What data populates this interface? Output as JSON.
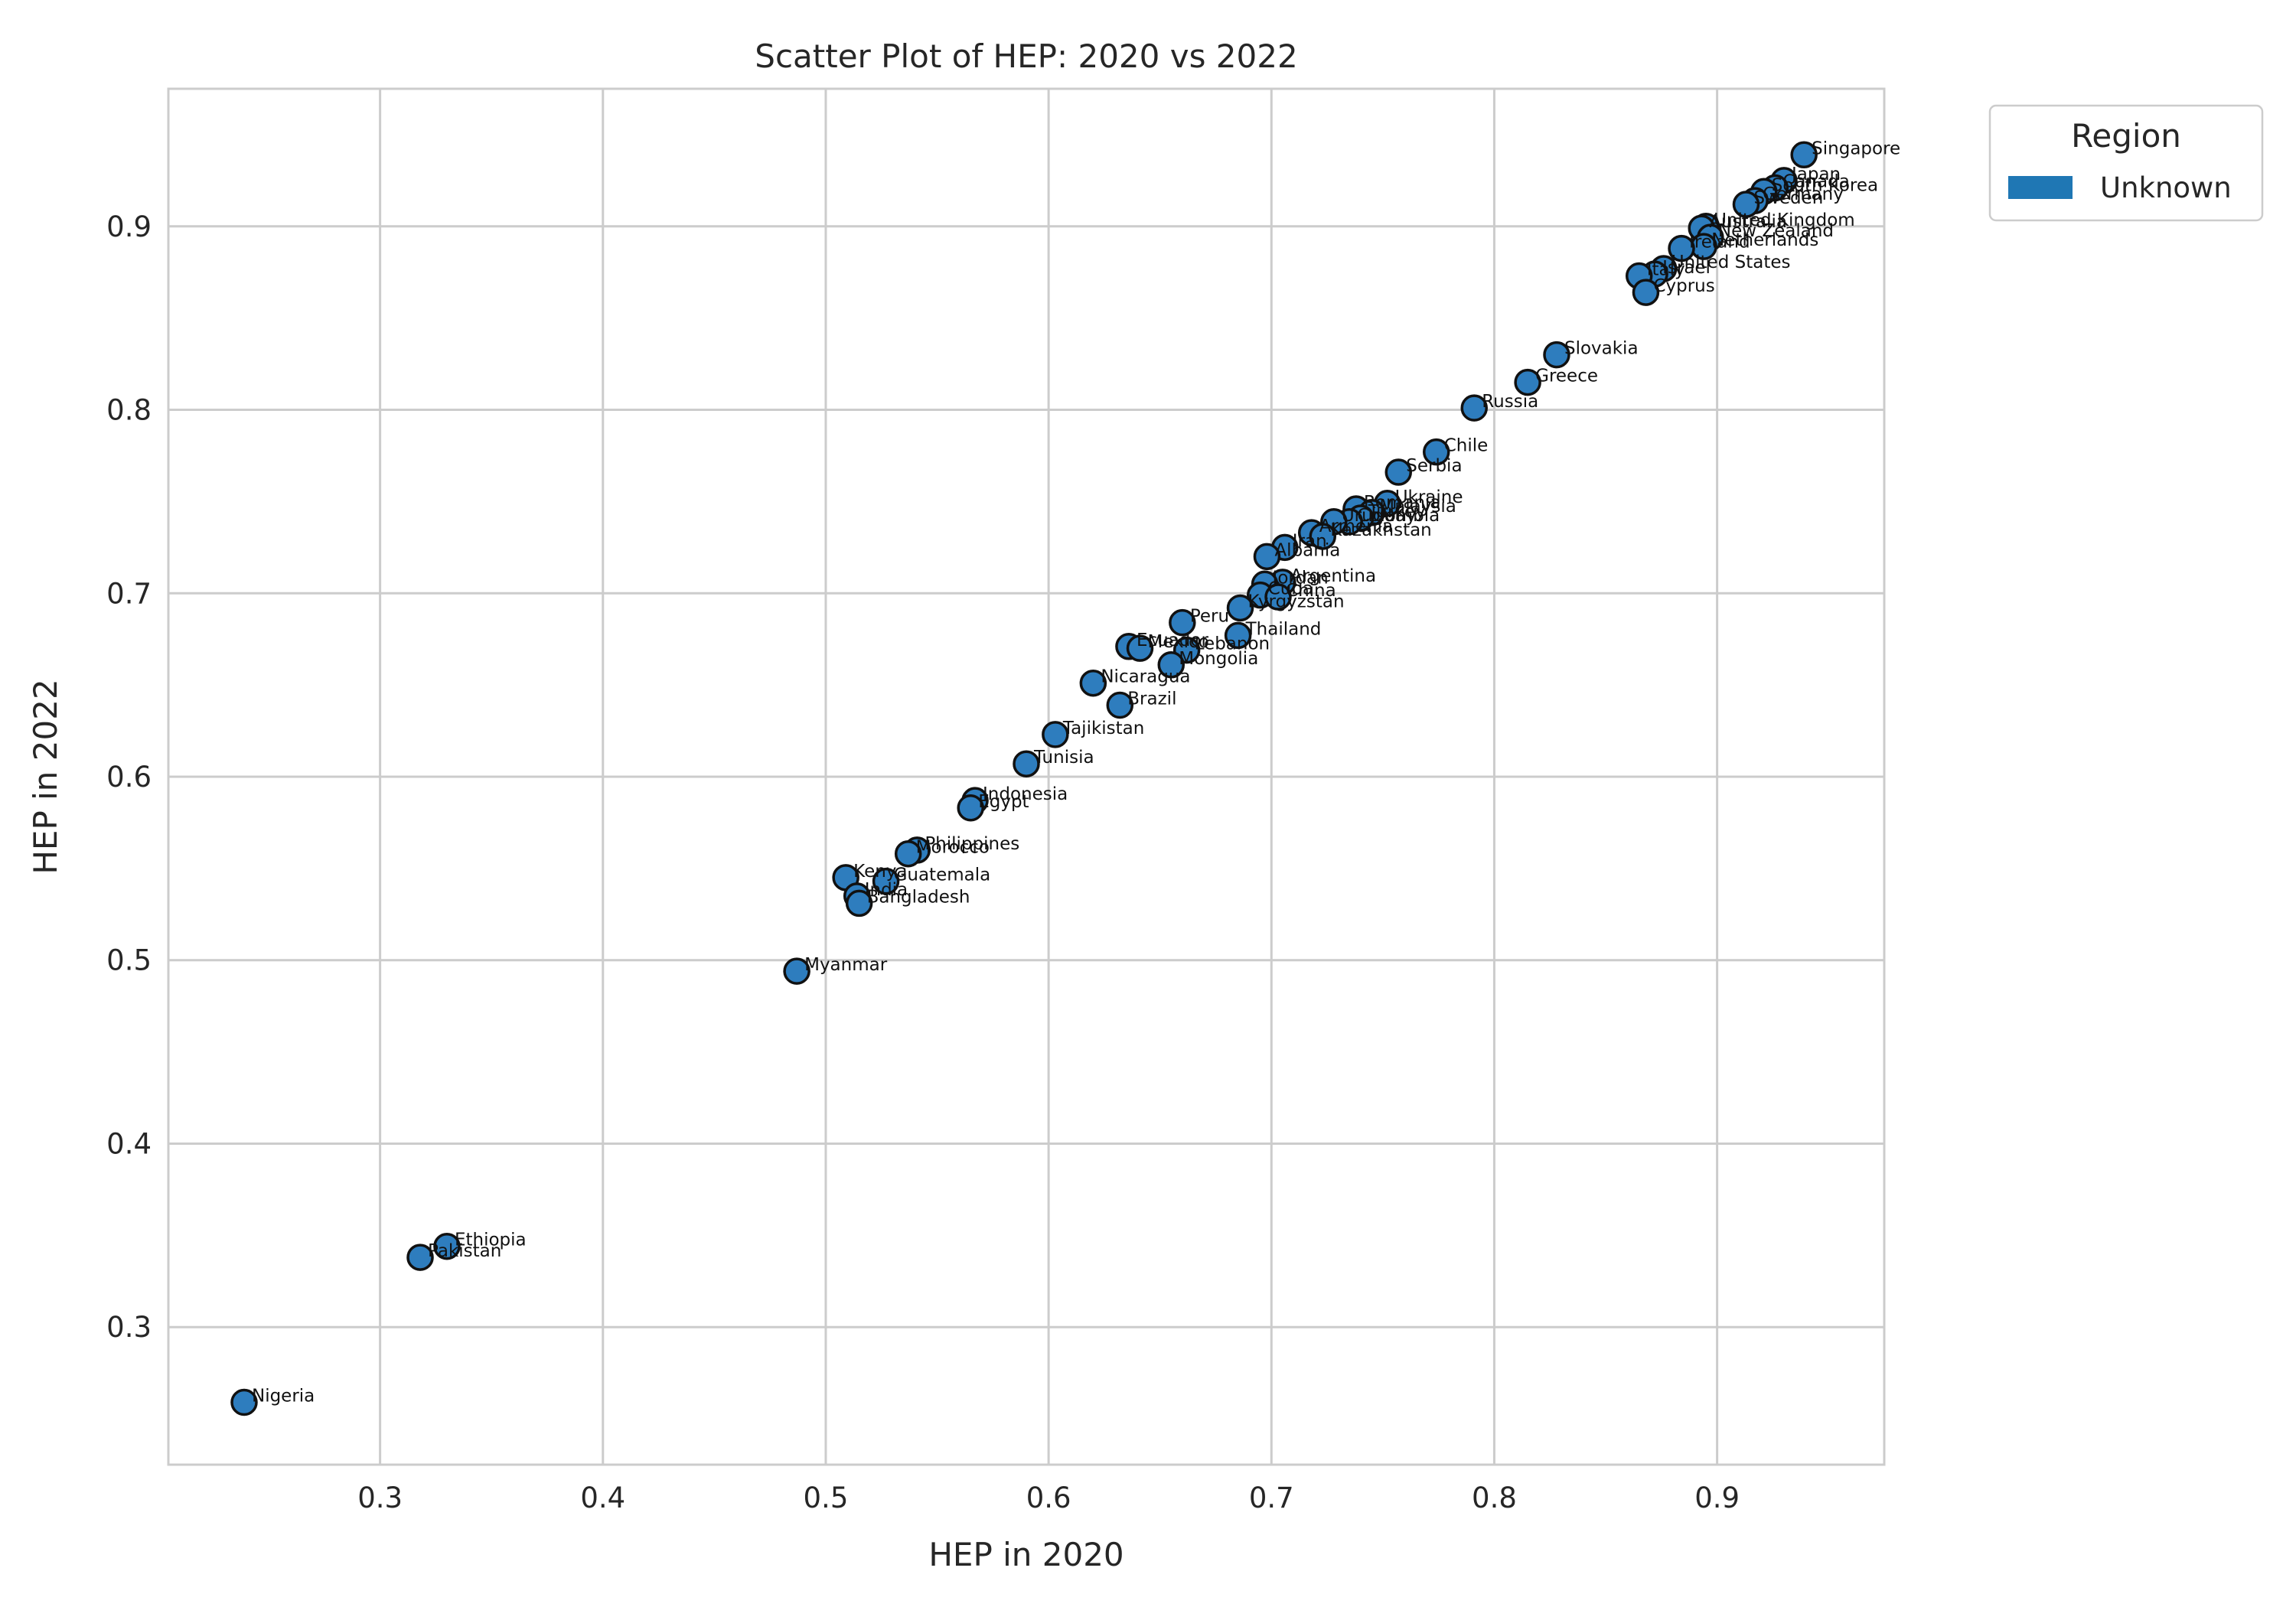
{
  "colors": {
    "point_fill": "#2e7dbe",
    "point_stroke": "#111111",
    "grid": "#cccccc",
    "frame": "#cccccc",
    "legend_patch": "#1f77b4"
  },
  "chart_data": {
    "type": "scatter",
    "title": "Scatter Plot of HEP: 2020 vs 2022",
    "xlabel": "HEP in 2020",
    "ylabel": "HEP in 2022",
    "xlim": [
      0.205,
      0.975
    ],
    "ylim": [
      0.225,
      0.975
    ],
    "xticks": [
      0.3,
      0.4,
      0.5,
      0.6,
      0.7,
      0.8,
      0.9
    ],
    "yticks": [
      0.3,
      0.4,
      0.5,
      0.6,
      0.7,
      0.8,
      0.9
    ],
    "xtick_labels": [
      "0.3",
      "0.4",
      "0.5",
      "0.6",
      "0.7",
      "0.8",
      "0.9"
    ],
    "ytick_labels": [
      "0.3",
      "0.4",
      "0.5",
      "0.6",
      "0.7",
      "0.8",
      "0.9"
    ],
    "grid": true,
    "legend": {
      "title": "Region",
      "entries": [
        "Unknown"
      ],
      "placement": "outside-top-right"
    },
    "points": [
      {
        "label": "Singapore",
        "x": 0.939,
        "y": 0.939
      },
      {
        "label": "Japan",
        "x": 0.93,
        "y": 0.925
      },
      {
        "label": "Canada",
        "x": 0.926,
        "y": 0.921
      },
      {
        "label": "South Korea",
        "x": 0.921,
        "y": 0.919
      },
      {
        "label": "Germany",
        "x": 0.917,
        "y": 0.914
      },
      {
        "label": "Sweden",
        "x": 0.913,
        "y": 0.912
      },
      {
        "label": "United Kingdom",
        "x": 0.895,
        "y": 0.9
      },
      {
        "label": "Australia",
        "x": 0.893,
        "y": 0.899
      },
      {
        "label": "New Zealand",
        "x": 0.897,
        "y": 0.894
      },
      {
        "label": "Netherlands",
        "x": 0.894,
        "y": 0.889
      },
      {
        "label": "Ireland",
        "x": 0.884,
        "y": 0.888
      },
      {
        "label": "United States",
        "x": 0.876,
        "y": 0.877
      },
      {
        "label": "Israel",
        "x": 0.872,
        "y": 0.874
      },
      {
        "label": "Italy",
        "x": 0.865,
        "y": 0.873
      },
      {
        "label": "Cyprus",
        "x": 0.868,
        "y": 0.864
      },
      {
        "label": "Slovakia",
        "x": 0.828,
        "y": 0.83
      },
      {
        "label": "Greece",
        "x": 0.815,
        "y": 0.815
      },
      {
        "label": "Russia",
        "x": 0.791,
        "y": 0.801
      },
      {
        "label": "Chile",
        "x": 0.774,
        "y": 0.777
      },
      {
        "label": "Serbia",
        "x": 0.757,
        "y": 0.766
      },
      {
        "label": "Ukraine",
        "x": 0.752,
        "y": 0.749
      },
      {
        "label": "Romania",
        "x": 0.738,
        "y": 0.746
      },
      {
        "label": "Malaysia",
        "x": 0.745,
        "y": 0.744
      },
      {
        "label": "Turkey",
        "x": 0.74,
        "y": 0.741
      },
      {
        "label": "Colombia",
        "x": 0.735,
        "y": 0.739
      },
      {
        "label": "Uruguay",
        "x": 0.728,
        "y": 0.739
      },
      {
        "label": "Armenia",
        "x": 0.718,
        "y": 0.733
      },
      {
        "label": "Kazakhstan",
        "x": 0.723,
        "y": 0.731
      },
      {
        "label": "Iran",
        "x": 0.706,
        "y": 0.725
      },
      {
        "label": "Albania",
        "x": 0.698,
        "y": 0.72
      },
      {
        "label": "Argentina",
        "x": 0.705,
        "y": 0.706
      },
      {
        "label": "Jordan",
        "x": 0.697,
        "y": 0.705
      },
      {
        "label": "Cuba",
        "x": 0.695,
        "y": 0.699
      },
      {
        "label": "China",
        "x": 0.703,
        "y": 0.698
      },
      {
        "label": "Kyrgyzstan",
        "x": 0.686,
        "y": 0.692
      },
      {
        "label": "Thailand",
        "x": 0.685,
        "y": 0.677
      },
      {
        "label": "Peru",
        "x": 0.66,
        "y": 0.684
      },
      {
        "label": "Ecuador",
        "x": 0.636,
        "y": 0.671
      },
      {
        "label": "Mexico",
        "x": 0.641,
        "y": 0.67
      },
      {
        "label": "Lebanon",
        "x": 0.662,
        "y": 0.669
      },
      {
        "label": "Mongolia",
        "x": 0.655,
        "y": 0.661
      },
      {
        "label": "Nicaragua",
        "x": 0.62,
        "y": 0.651
      },
      {
        "label": "Brazil",
        "x": 0.632,
        "y": 0.639
      },
      {
        "label": "Tajikistan",
        "x": 0.603,
        "y": 0.623
      },
      {
        "label": "Tunisia",
        "x": 0.59,
        "y": 0.607
      },
      {
        "label": "Indonesia",
        "x": 0.567,
        "y": 0.587
      },
      {
        "label": "Egypt",
        "x": 0.565,
        "y": 0.583
      },
      {
        "label": "Philippines",
        "x": 0.541,
        "y": 0.56
      },
      {
        "label": "Morocco",
        "x": 0.537,
        "y": 0.558
      },
      {
        "label": "Kenya",
        "x": 0.509,
        "y": 0.545
      },
      {
        "label": "Guatemala",
        "x": 0.527,
        "y": 0.543
      },
      {
        "label": "India",
        "x": 0.514,
        "y": 0.535
      },
      {
        "label": "Bangladesh",
        "x": 0.515,
        "y": 0.531
      },
      {
        "label": "Myanmar",
        "x": 0.487,
        "y": 0.494
      },
      {
        "label": "Ethiopia",
        "x": 0.33,
        "y": 0.344
      },
      {
        "label": "Pakistan",
        "x": 0.318,
        "y": 0.338
      },
      {
        "label": "Nigeria",
        "x": 0.239,
        "y": 0.259
      }
    ]
  }
}
